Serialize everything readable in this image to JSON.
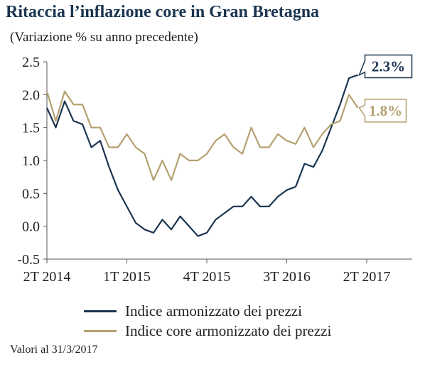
{
  "title": "Ritaccia l’inflazione core in Gran Bretagna",
  "subtitle": "(Variazione % su anno precedente)",
  "footnote": "Valori al 31/3/2017",
  "colors": {
    "headline": "#1b3550",
    "core": "#b5a06f",
    "axis": "#555555"
  },
  "chart_data": {
    "type": "line",
    "title": "Ritaccia l’inflazione core in Gran Bretagna",
    "subtitle": "(Variazione % su anno precedente)",
    "x_ticks": [
      "2T 2014",
      "1T 2015",
      "4T 2015",
      "3T 2016",
      "2T 2017"
    ],
    "x_tick_months": [
      0,
      9,
      18,
      27,
      36
    ],
    "yticks": [
      "2.5",
      "2.0",
      "1.5",
      "1.0",
      "0.5",
      "0.0",
      "-0.5"
    ],
    "ylim": [
      -0.5,
      2.5
    ],
    "xlim_months": [
      0,
      41
    ],
    "grid": false,
    "legend_position": "bottom",
    "series": [
      {
        "name": "Indice armonizzato dei prezzi",
        "color": "#1b3550",
        "values": [
          1.8,
          1.5,
          1.9,
          1.6,
          1.55,
          1.2,
          1.3,
          0.9,
          0.55,
          0.3,
          0.05,
          -0.05,
          -0.1,
          0.1,
          -0.05,
          0.15,
          0.0,
          -0.15,
          -0.1,
          0.1,
          0.2,
          0.3,
          0.3,
          0.45,
          0.3,
          0.3,
          0.45,
          0.55,
          0.6,
          0.95,
          0.9,
          1.15,
          1.5,
          1.85,
          2.25,
          2.3
        ],
        "end_label": "2.3%"
      },
      {
        "name": "Indice core armonizzato dei prezzi",
        "color": "#b5a06f",
        "values": [
          2.05,
          1.6,
          2.05,
          1.85,
          1.85,
          1.5,
          1.5,
          1.2,
          1.2,
          1.4,
          1.2,
          1.1,
          0.7,
          1.0,
          0.7,
          1.1,
          1.0,
          1.0,
          1.1,
          1.3,
          1.4,
          1.2,
          1.1,
          1.5,
          1.2,
          1.2,
          1.4,
          1.3,
          1.25,
          1.5,
          1.2,
          1.4,
          1.55,
          1.6,
          2.0,
          1.8
        ],
        "end_label": "1.8%"
      }
    ]
  }
}
